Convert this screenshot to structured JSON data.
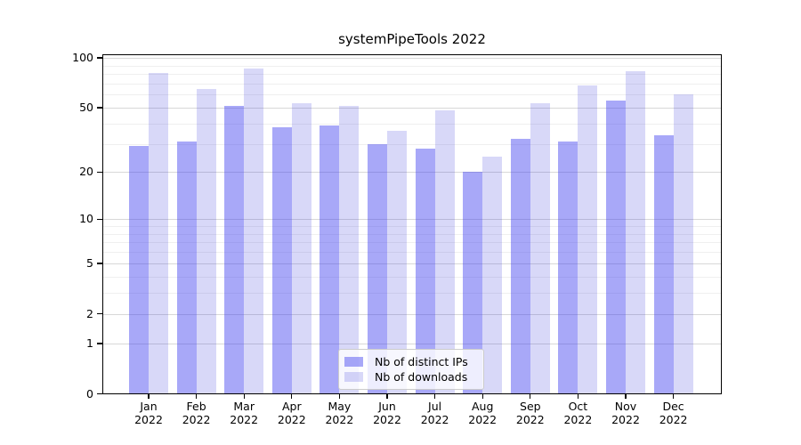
{
  "chart_data": {
    "type": "bar",
    "title": "systemPipeTools 2022",
    "categories": [
      "Jan",
      "Feb",
      "Mar",
      "Apr",
      "May",
      "Jun",
      "Jul",
      "Aug",
      "Sep",
      "Oct",
      "Nov",
      "Dec"
    ],
    "category_year": "2022",
    "series": [
      {
        "name": "Nb of distinct IPs",
        "slug": "distinct-ips",
        "color_hex": "#a8a8f8",
        "fill": "rgba(62,62,240,0.45)",
        "values": [
          29,
          31,
          51,
          38,
          39,
          30,
          28,
          20,
          32,
          31,
          55,
          34
        ]
      },
      {
        "name": "Nb of downloads",
        "slug": "downloads",
        "color_hex": "#d8d8f8",
        "fill": "rgba(60,60,220,0.2)",
        "values": [
          81,
          65,
          86,
          53,
          51,
          36,
          48,
          25,
          53,
          68,
          83,
          60
        ]
      }
    ],
    "yscale": "log1p",
    "yticks": [
      100,
      50,
      20,
      10,
      5,
      2,
      1,
      0
    ],
    "minor_gridlines": [
      3,
      4,
      6,
      7,
      8,
      9,
      30,
      40,
      60,
      70,
      80,
      90
    ],
    "ylim": [
      0,
      105
    ],
    "xlabel": "",
    "ylabel": "",
    "grid": true,
    "legend_position": "lower center"
  },
  "colors": {
    "major_grid": "#d8d8d8",
    "minor_grid": "#efefef",
    "frame": "#000000",
    "text": "#000000",
    "legend_border": "#cccccc"
  }
}
